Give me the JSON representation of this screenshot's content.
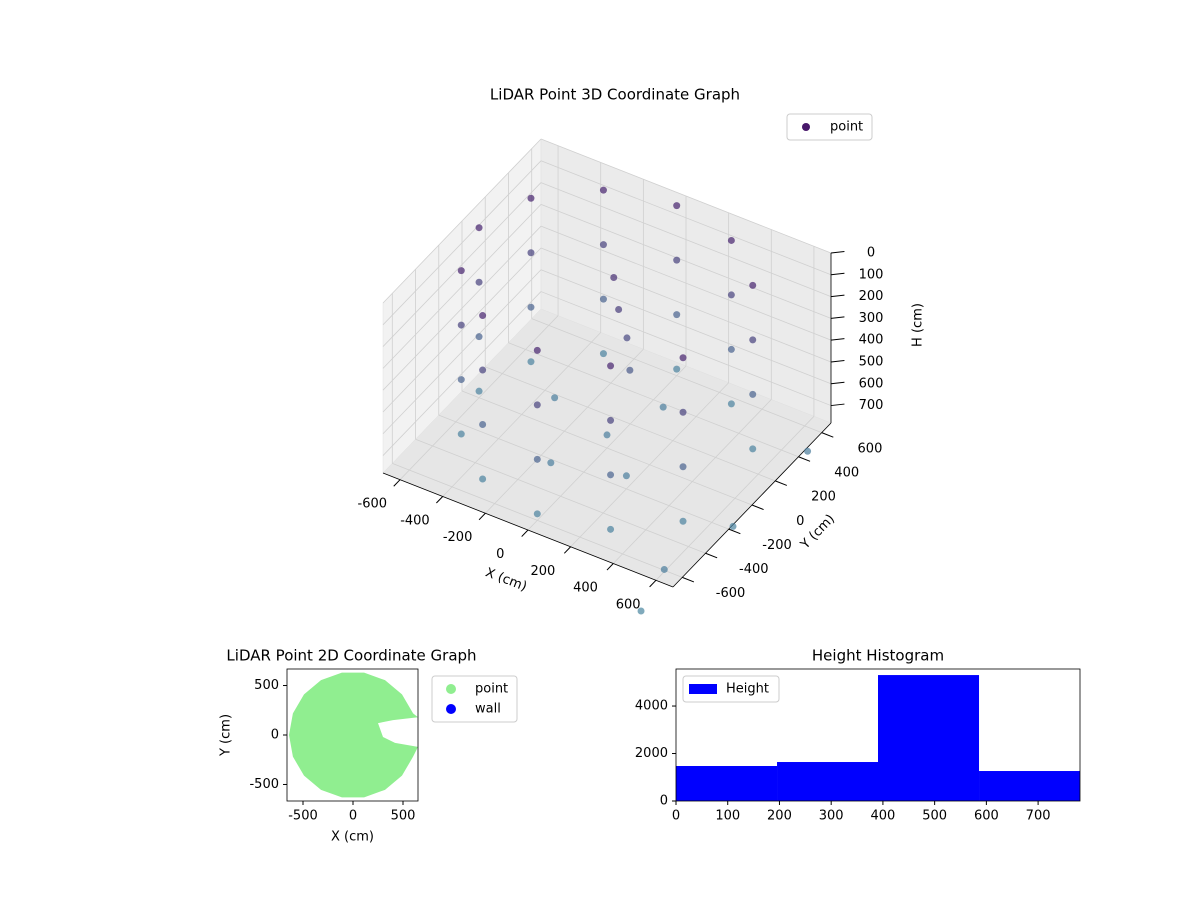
{
  "chart_data": [
    {
      "type": "scatter3d",
      "title": "LiDAR Point 3D Coordinate Graph",
      "xlabel": "X (cm)",
      "ylabel": "Y (cm)",
      "zlabel": "H (cm)",
      "xlim": [
        -680,
        680
      ],
      "ylim": [
        -680,
        680
      ],
      "zlim": [
        780,
        0
      ],
      "xticks": [
        -600,
        -400,
        -200,
        0,
        200,
        400,
        600
      ],
      "yticks": [
        -600,
        -400,
        -200,
        0,
        200,
        400,
        600
      ],
      "zticks": [
        0,
        100,
        200,
        300,
        400,
        500,
        600,
        700
      ],
      "grid": true,
      "legend": "upper right",
      "series": [
        {
          "name": "point",
          "color": "#48186a",
          "color_range": [
            "#46226e",
            "#4a86a0"
          ],
          "x": [
            520,
            520,
            520,
            520,
            300,
            300,
            300,
            300,
            0,
            0,
            0,
            0,
            -300,
            -300,
            -300,
            -300,
            -520,
            -520,
            -520,
            -520,
            -600,
            -600,
            -600,
            -600,
            -520,
            -520,
            -520,
            -520,
            -300,
            -300,
            -300,
            -300,
            0,
            0,
            0,
            0,
            300,
            300,
            300,
            300,
            520,
            520,
            520,
            520,
            -300,
            0,
            200,
            -100,
            100,
            -50,
            0,
            50,
            80,
            650,
            700,
            750,
            650
          ],
          "y": [
            300,
            300,
            300,
            300,
            520,
            520,
            520,
            520,
            600,
            600,
            600,
            600,
            520,
            520,
            520,
            520,
            300,
            300,
            300,
            300,
            0,
            0,
            0,
            0,
            -300,
            -300,
            -300,
            -300,
            -520,
            -520,
            -520,
            -520,
            -600,
            -600,
            -600,
            -600,
            -520,
            -520,
            -520,
            -520,
            -300,
            -300,
            -300,
            -300,
            100,
            0,
            -200,
            -300,
            300,
            150,
            100,
            80,
            50,
            -700,
            -200,
            350,
            -900
          ],
          "z": [
            0,
            250,
            500,
            750,
            0,
            250,
            500,
            750,
            0,
            250,
            500,
            750,
            0,
            250,
            500,
            750,
            0,
            250,
            500,
            750,
            0,
            250,
            500,
            750,
            0,
            250,
            500,
            750,
            0,
            250,
            500,
            750,
            0,
            250,
            500,
            750,
            0,
            250,
            500,
            750,
            0,
            250,
            500,
            750,
            720,
            720,
            720,
            720,
            720,
            100,
            200,
            300,
            420,
            700,
            760,
            700,
            780
          ]
        }
      ]
    },
    {
      "type": "scatter",
      "title": "LiDAR Point 2D Coordinate Graph",
      "xlabel": "X (cm)",
      "ylabel": "Y (cm)",
      "xlim": [
        -660,
        650
      ],
      "ylim": [
        -667,
        667
      ],
      "xticks": [
        -500,
        0,
        500
      ],
      "yticks": [
        -500,
        0,
        500
      ],
      "legend": "outside right",
      "series": [
        {
          "name": "point",
          "color": "lightgreen",
          "x": [
            650,
            601,
            490,
            320,
            111,
            -111,
            -320,
            -490,
            -601,
            -640,
            -601,
            -490,
            -320,
            -111,
            111,
            320,
            490,
            601,
            650,
            420,
            300,
            250,
            400
          ],
          "y": [
            180,
            219,
            411,
            554,
            630,
            630,
            554,
            411,
            219,
            0,
            -219,
            -411,
            -554,
            -630,
            -630,
            -554,
            -411,
            -219,
            -120,
            -80,
            -20,
            120,
            150
          ]
        },
        {
          "name": "wall",
          "color": "blue",
          "x": [],
          "y": []
        }
      ]
    },
    {
      "type": "histogram",
      "title": "Height Histogram",
      "bins": [
        0,
        195.3,
        390.5,
        585.8,
        781
      ],
      "xlim": [
        0,
        781
      ],
      "ylim": [
        0,
        5560
      ],
      "xticks": [
        0,
        100,
        200,
        300,
        400,
        500,
        600,
        700
      ],
      "yticks": [
        0,
        2000,
        4000
      ],
      "legend": "upper left",
      "series": [
        {
          "name": "Height",
          "color": "blue",
          "values": [
            1474,
            1642,
            5305,
            1263
          ]
        }
      ]
    }
  ]
}
